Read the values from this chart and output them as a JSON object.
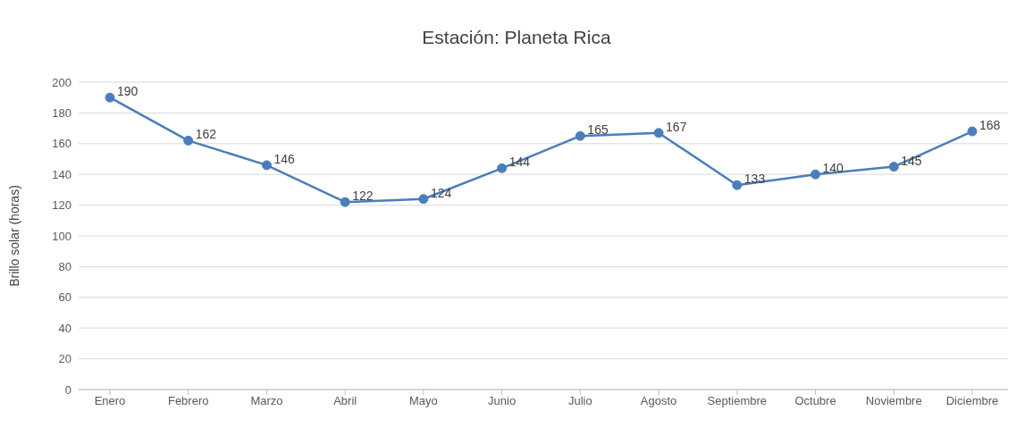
{
  "chart_data": {
    "type": "line",
    "title": "Estación: Planeta Rica",
    "ylabel": "Brillo solar (horas)",
    "categories": [
      "Enero",
      "Febrero",
      "Marzo",
      "Abril",
      "Mayo",
      "Junio",
      "Julio",
      "Agosto",
      "Septiembre",
      "Octubre",
      "Noviembre",
      "Diciembre"
    ],
    "series": [
      {
        "color": "#4a7ebb",
        "values": [
          190,
          162,
          146,
          122,
          124,
          144,
          165,
          167,
          133,
          140,
          145,
          168
        ]
      }
    ],
    "ylim": [
      0,
      200
    ],
    "yticks": [
      0,
      20,
      40,
      60,
      80,
      100,
      120,
      140,
      160,
      180,
      200
    ],
    "grid": "y",
    "legend": false,
    "marker": "circle",
    "line_style": "solid",
    "data_labels": true
  }
}
